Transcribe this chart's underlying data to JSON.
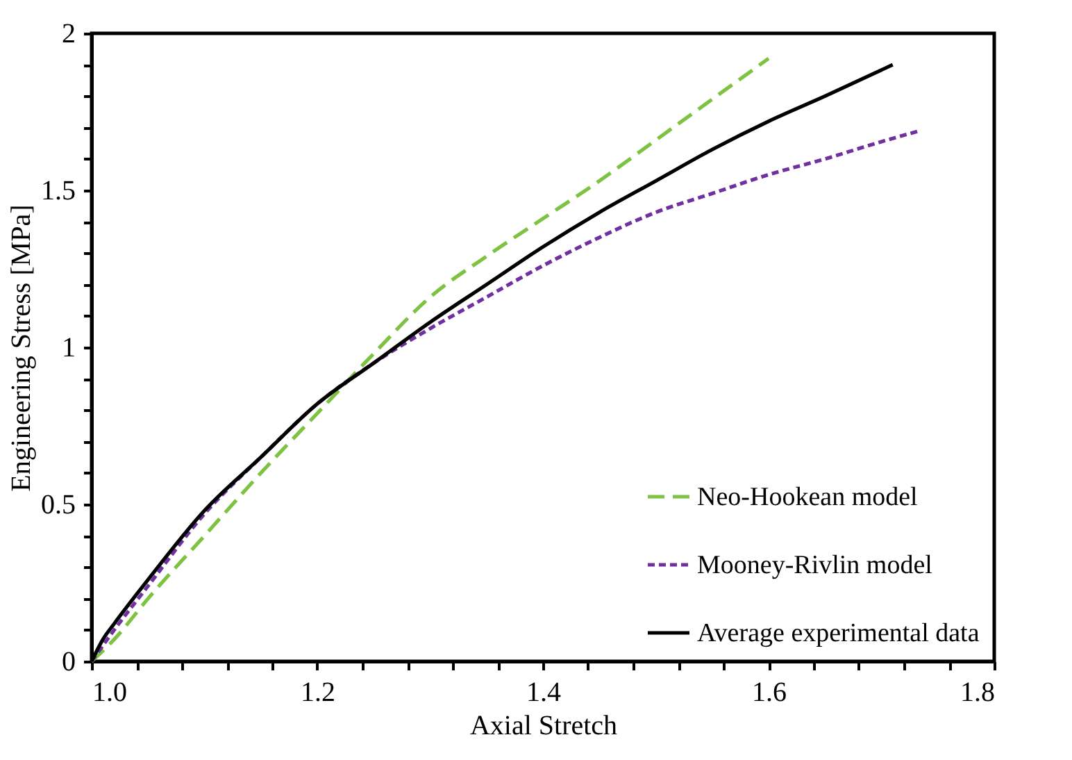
{
  "chart_data": {
    "type": "line",
    "xlabel": "Axial Stretch",
    "ylabel": "Engineering Stress [MPa]",
    "xlim": [
      1.0,
      1.8
    ],
    "ylim": [
      0,
      2
    ],
    "xticks": [
      {
        "value": 1.0,
        "label": "1.0"
      },
      {
        "value": 1.04,
        "label": null
      },
      {
        "value": 1.08,
        "label": null
      },
      {
        "value": 1.12,
        "label": null
      },
      {
        "value": 1.16,
        "label": null
      },
      {
        "value": 1.2,
        "label": "1.2"
      },
      {
        "value": 1.24,
        "label": null
      },
      {
        "value": 1.28,
        "label": null
      },
      {
        "value": 1.32,
        "label": null
      },
      {
        "value": 1.36,
        "label": null
      },
      {
        "value": 1.4,
        "label": "1.4"
      },
      {
        "value": 1.44,
        "label": null
      },
      {
        "value": 1.48,
        "label": null
      },
      {
        "value": 1.52,
        "label": null
      },
      {
        "value": 1.56,
        "label": null
      },
      {
        "value": 1.6,
        "label": "1.6"
      },
      {
        "value": 1.64,
        "label": null
      },
      {
        "value": 1.68,
        "label": null
      },
      {
        "value": 1.72,
        "label": null
      },
      {
        "value": 1.76,
        "label": null
      },
      {
        "value": 1.8,
        "label": "1.8"
      }
    ],
    "yticks": [
      0,
      {
        "value": 0.1,
        "label": null
      },
      {
        "value": 0.2,
        "label": null
      },
      {
        "value": 0.3,
        "label": null
      },
      {
        "value": 0.4,
        "label": null
      },
      0.5,
      {
        "value": 0.6,
        "label": null
      },
      {
        "value": 0.7,
        "label": null
      },
      {
        "value": 0.8,
        "label": null
      },
      {
        "value": 0.9,
        "label": null
      },
      1,
      {
        "value": 1.1,
        "label": null
      },
      {
        "value": 1.2,
        "label": null
      },
      {
        "value": 1.3,
        "label": null
      },
      {
        "value": 1.4,
        "label": null
      },
      1.5,
      {
        "value": 1.6,
        "label": null
      },
      {
        "value": 1.7,
        "label": null
      },
      {
        "value": 1.8,
        "label": null
      },
      {
        "value": 1.9,
        "label": null
      },
      2
    ],
    "grid": false,
    "legend": "bottom right",
    "marker": "none",
    "series": [
      {
        "name": "Neo-Hookean model",
        "color": "#7ec242",
        "line_style": "dashed",
        "x": [
          1.0,
          1.02,
          1.05,
          1.1,
          1.15,
          1.2,
          1.25,
          1.3,
          1.35,
          1.4,
          1.45,
          1.5,
          1.55,
          1.6
        ],
        "values": [
          0,
          0.07,
          0.2,
          0.4,
          0.6,
          0.79,
          0.98,
          1.16,
          1.29,
          1.41,
          1.53,
          1.66,
          1.79,
          1.92
        ]
      },
      {
        "name": "Mooney-Rivlin model",
        "color": "#7030a0",
        "line_style": "dotted",
        "x": [
          1.0,
          1.02,
          1.05,
          1.1,
          1.15,
          1.2,
          1.25,
          1.3,
          1.35,
          1.4,
          1.45,
          1.5,
          1.55,
          1.6,
          1.65,
          1.7,
          1.734
        ],
        "values": [
          0,
          0.1,
          0.24,
          0.47,
          0.65,
          0.82,
          0.95,
          1.06,
          1.16,
          1.26,
          1.35,
          1.43,
          1.49,
          1.55,
          1.6,
          1.655,
          1.69
        ]
      },
      {
        "name": "Average experimental data",
        "color": "#000000",
        "line_style": "solid",
        "x": [
          1.0,
          1.01,
          1.02,
          1.05,
          1.1,
          1.15,
          1.2,
          1.25,
          1.3,
          1.35,
          1.4,
          1.45,
          1.5,
          1.55,
          1.6,
          1.65,
          1.71
        ],
        "values": [
          0,
          0.07,
          0.12,
          0.26,
          0.48,
          0.65,
          0.82,
          0.95,
          1.08,
          1.2,
          1.32,
          1.43,
          1.53,
          1.63,
          1.72,
          1.8,
          1.9
        ]
      }
    ]
  }
}
